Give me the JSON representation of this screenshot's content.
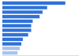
{
  "chart_data": {
    "type": "bar",
    "orientation": "horizontal",
    "categories": [
      null,
      null,
      null,
      null,
      null,
      null,
      null,
      null,
      null,
      null,
      null,
      null
    ],
    "values": [
      83,
      59,
      53,
      49,
      40,
      38,
      38,
      34,
      27,
      25,
      23,
      20
    ],
    "colors": [
      "#2f72d8",
      "#2f72d8",
      "#2f72d8",
      "#2f72d8",
      "#2f72d8",
      "#2f72d8",
      "#2f72d8",
      "#2f72d8",
      "#2f72d8",
      "#2f72d8",
      "#a8c3ee",
      "#a8c3ee"
    ],
    "xlim": [
      0,
      100
    ],
    "grid": false,
    "tick_labels": false
  }
}
